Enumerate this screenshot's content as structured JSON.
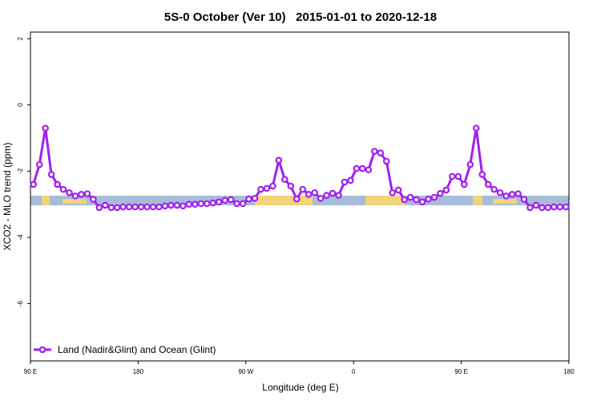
{
  "chart_data": {
    "type": "line",
    "title": "5S-0 October (Ver 10)   2015-01-01 to 2020-12-18",
    "x_label": "Longitude (deg E)",
    "y_label": "XCO2 - MLO trend (ppm)",
    "xlim": [
      90,
      540
    ],
    "xticks": [
      {
        "value": 90,
        "label": "90 E"
      },
      180,
      {
        "value": 270,
        "label": "90 W"
      },
      {
        "value": 360,
        "label": "0"
      },
      {
        "value": 450,
        "label": "90 E"
      },
      {
        "value": 540,
        "label": "180"
      }
    ],
    "ylim": [
      -7.73,
      2.2
    ],
    "yticks": [
      2,
      0,
      -2,
      -4,
      -6
    ],
    "legend": "bottom-left",
    "x": [
      92.5,
      97.5,
      102.5,
      107.5,
      112.5,
      117.5,
      122.5,
      127.5,
      132.5,
      137.5,
      142.5,
      147.5,
      152.5,
      157.5,
      162.5,
      167.5,
      172.5,
      177.5,
      182.5,
      187.5,
      192.5,
      197.5,
      202.5,
      207.5,
      212.5,
      217.5,
      222.5,
      227.5,
      232.5,
      237.5,
      242.5,
      247.5,
      252.5,
      257.5,
      262.5,
      267.5,
      272.5,
      277.5,
      282.5,
      287.5,
      292.5,
      297.5,
      302.5,
      307.5,
      312.5,
      317.5,
      322.5,
      327.5,
      332.5,
      337.5,
      342.5,
      347.5,
      352.5,
      357.5,
      362.5,
      367.5,
      372.5,
      377.5,
      382.5,
      387.5,
      392.5,
      397.5,
      402.5,
      407.5,
      412.5,
      417.5,
      422.5,
      427.5,
      432.5,
      437.5,
      442.5,
      447.5,
      452.5,
      457.5,
      462.5,
      467.5,
      472.5,
      477.5,
      482.5,
      487.5,
      492.5,
      497.5,
      502.5,
      507.5,
      512.5,
      517.5,
      522.5,
      527.5,
      532.5,
      537.5
    ],
    "series": [
      {
        "name": "Land (Nadir&Glint) and Ocean (Glint)",
        "color": "#a020f0",
        "values": [
          -2.4,
          -1.8,
          -0.7,
          -2.1,
          -2.4,
          -2.55,
          -2.65,
          -2.75,
          -2.7,
          -2.68,
          -2.85,
          -3.1,
          -3.03,
          -3.1,
          -3.1,
          -3.08,
          -3.08,
          -3.08,
          -3.08,
          -3.08,
          -3.08,
          -3.08,
          -3.05,
          -3.03,
          -3.03,
          -3.05,
          -3.0,
          -3.0,
          -2.98,
          -2.98,
          -2.96,
          -2.93,
          -2.88,
          -2.86,
          -2.98,
          -2.98,
          -2.84,
          -2.82,
          -2.55,
          -2.52,
          -2.45,
          -1.67,
          -2.25,
          -2.45,
          -2.84,
          -2.55,
          -2.7,
          -2.65,
          -2.82,
          -2.73,
          -2.67,
          -2.73,
          -2.33,
          -2.28,
          -1.92,
          -1.92,
          -1.96,
          -1.4,
          -1.45,
          -1.7,
          -2.65,
          -2.57,
          -2.86,
          -2.79,
          -2.86,
          -2.93,
          -2.84,
          -2.79,
          -2.67,
          -2.57,
          -2.16,
          -2.16,
          -2.4,
          -1.8,
          -0.7,
          -2.1,
          -2.4,
          -2.55,
          -2.65,
          -2.75,
          -2.7,
          -2.68,
          -2.85,
          -3.1,
          -3.03,
          -3.1,
          -3.1,
          -3.08,
          -3.08,
          -3.08
        ]
      }
    ]
  }
}
